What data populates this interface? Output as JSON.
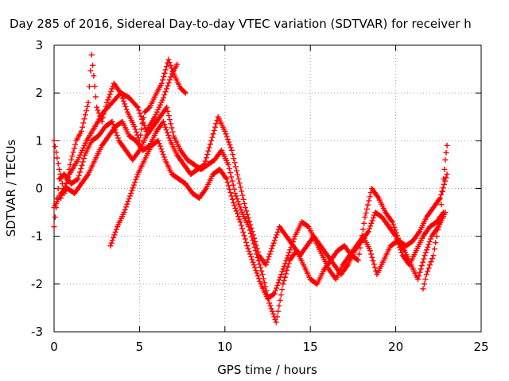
{
  "chart_data": {
    "type": "scatter",
    "title": "Day 285 of 2016, Sidereal Day-to-day VTEC variation (SDTVAR) for receiver h",
    "xlabel": "GPS time / hours",
    "ylabel": "SDTVAR / TECUs",
    "xlim": [
      0,
      25
    ],
    "ylim": [
      -3,
      3
    ],
    "xticks": [
      0,
      5,
      10,
      15,
      20,
      25
    ],
    "yticks": [
      -3,
      -2,
      -1,
      0,
      1,
      2,
      3
    ],
    "grid": true,
    "marker": "+",
    "color": "#ff0000",
    "series": [
      {
        "values": [
          [
            0.0,
            1.0
          ],
          [
            0.3,
            0.4
          ],
          [
            0.6,
            -0.1
          ],
          [
            1.0,
            0.6
          ],
          [
            1.3,
            1.0
          ],
          [
            1.6,
            1.2
          ],
          [
            2.0,
            1.8
          ],
          [
            2.2,
            2.8
          ],
          [
            2.5,
            1.7
          ],
          [
            2.8,
            1.4
          ],
          [
            3.1,
            1.8
          ],
          [
            3.5,
            2.2
          ],
          [
            3.9,
            2.0
          ],
          [
            4.3,
            1.6
          ],
          [
            4.7,
            1.3
          ],
          [
            5.0,
            1.0
          ],
          [
            5.3,
            1.6
          ],
          [
            5.6,
            1.7
          ],
          [
            6.0,
            2.0
          ],
          [
            6.3,
            2.2
          ],
          [
            6.7,
            2.7
          ],
          [
            7.0,
            2.4
          ],
          [
            7.4,
            2.1
          ],
          [
            7.7,
            2.0
          ]
        ]
      },
      {
        "values": [
          [
            0.0,
            -0.8
          ],
          [
            0.3,
            0.2
          ],
          [
            0.6,
            0.3
          ],
          [
            1.0,
            0.1
          ],
          [
            1.4,
            0.2
          ],
          [
            1.8,
            0.7
          ],
          [
            2.2,
            1.0
          ],
          [
            2.6,
            1.1
          ],
          [
            3.0,
            1.3
          ],
          [
            3.4,
            1.4
          ],
          [
            3.8,
            1.0
          ],
          [
            4.2,
            0.8
          ],
          [
            4.6,
            0.6
          ],
          [
            5.0,
            0.8
          ],
          [
            5.4,
            1.1
          ],
          [
            5.8,
            1.3
          ],
          [
            6.2,
            1.5
          ],
          [
            6.6,
            1.7
          ],
          [
            7.0,
            1.1
          ],
          [
            7.4,
            0.8
          ],
          [
            7.8,
            0.6
          ],
          [
            8.2,
            0.5
          ],
          [
            8.6,
            0.4
          ],
          [
            9.0,
            0.5
          ],
          [
            9.4,
            0.6
          ],
          [
            9.8,
            0.8
          ],
          [
            10.2,
            0.5
          ],
          [
            10.6,
            -0.1
          ],
          [
            11.0,
            -0.5
          ],
          [
            11.4,
            -0.8
          ],
          [
            11.8,
            -1.3
          ],
          [
            12.2,
            -1.8
          ],
          [
            12.6,
            -2.4
          ],
          [
            13.0,
            -2.8
          ],
          [
            13.4,
            -2.0
          ],
          [
            13.8,
            -1.5
          ],
          [
            14.2,
            -1.3
          ],
          [
            14.6,
            -1.6
          ],
          [
            15.0,
            -1.9
          ],
          [
            15.4,
            -2.0
          ],
          [
            15.8,
            -1.7
          ],
          [
            16.2,
            -1.5
          ],
          [
            16.6,
            -1.3
          ],
          [
            17.0,
            -1.2
          ],
          [
            17.4,
            -1.4
          ],
          [
            17.8,
            -1.5
          ],
          [
            18.2,
            -0.6
          ],
          [
            18.6,
            0.0
          ],
          [
            19.0,
            -0.2
          ],
          [
            19.4,
            -0.5
          ],
          [
            19.8,
            -0.7
          ],
          [
            20.2,
            -1.1
          ],
          [
            20.6,
            -1.2
          ],
          [
            21.0,
            -1.1
          ],
          [
            21.4,
            -0.9
          ],
          [
            21.8,
            -0.6
          ],
          [
            22.2,
            -0.4
          ],
          [
            22.6,
            -0.2
          ],
          [
            23.0,
            0.3
          ]
        ]
      },
      {
        "values": [
          [
            0.0,
            -0.4
          ],
          [
            0.4,
            -0.1
          ],
          [
            0.8,
            0.0
          ],
          [
            1.2,
            -0.1
          ],
          [
            1.6,
            0.1
          ],
          [
            2.0,
            0.3
          ],
          [
            2.4,
            0.6
          ],
          [
            2.8,
            0.9
          ],
          [
            3.2,
            1.1
          ],
          [
            3.6,
            1.3
          ],
          [
            4.0,
            1.4
          ],
          [
            4.4,
            1.1
          ],
          [
            4.8,
            1.0
          ],
          [
            5.2,
            0.8
          ],
          [
            5.6,
            0.9
          ],
          [
            6.0,
            1.2
          ],
          [
            6.4,
            1.4
          ],
          [
            6.8,
            1.0
          ],
          [
            7.2,
            0.7
          ],
          [
            7.6,
            0.5
          ],
          [
            8.0,
            0.3
          ],
          [
            8.4,
            0.4
          ],
          [
            8.8,
            0.5
          ],
          [
            9.2,
            1.0
          ],
          [
            9.6,
            1.5
          ],
          [
            10.0,
            1.2
          ],
          [
            10.4,
            0.8
          ],
          [
            10.8,
            0.2
          ],
          [
            11.2,
            -0.4
          ],
          [
            11.6,
            -0.9
          ],
          [
            12.0,
            -1.4
          ],
          [
            12.4,
            -1.6
          ],
          [
            12.8,
            -1.2
          ],
          [
            13.2,
            -0.8
          ],
          [
            13.6,
            -1.0
          ],
          [
            14.0,
            -1.2
          ],
          [
            14.4,
            -1.4
          ],
          [
            14.8,
            -1.2
          ],
          [
            15.2,
            -1.0
          ],
          [
            15.6,
            -1.2
          ],
          [
            16.0,
            -1.4
          ],
          [
            16.4,
            -1.6
          ],
          [
            16.8,
            -1.8
          ],
          [
            17.2,
            -1.6
          ],
          [
            17.6,
            -1.3
          ],
          [
            18.0,
            -1.1
          ],
          [
            18.4,
            -0.9
          ],
          [
            18.8,
            -0.5
          ],
          [
            19.2,
            -0.6
          ],
          [
            19.6,
            -0.8
          ],
          [
            20.0,
            -1.0
          ],
          [
            20.4,
            -1.4
          ],
          [
            20.8,
            -1.6
          ],
          [
            21.2,
            -1.3
          ],
          [
            21.6,
            -1.0
          ],
          [
            22.0,
            -0.8
          ],
          [
            22.4,
            -0.7
          ],
          [
            22.8,
            -0.5
          ]
        ]
      },
      {
        "values": [
          [
            3.3,
            -1.2
          ],
          [
            3.7,
            -0.8
          ],
          [
            4.1,
            -0.5
          ],
          [
            4.5,
            -0.1
          ],
          [
            4.9,
            0.3
          ],
          [
            5.3,
            0.6
          ],
          [
            5.7,
            0.9
          ],
          [
            6.1,
            1.0
          ],
          [
            6.5,
            0.6
          ],
          [
            6.9,
            0.3
          ],
          [
            7.3,
            0.2
          ],
          [
            7.7,
            0.1
          ],
          [
            8.1,
            -0.1
          ],
          [
            8.5,
            -0.2
          ],
          [
            8.9,
            0.0
          ],
          [
            9.3,
            0.3
          ],
          [
            9.7,
            0.4
          ],
          [
            10.1,
            0.2
          ],
          [
            10.5,
            -0.3
          ],
          [
            10.9,
            -0.7
          ],
          [
            11.3,
            -1.2
          ],
          [
            11.7,
            -1.6
          ],
          [
            12.1,
            -2.0
          ],
          [
            12.5,
            -2.3
          ],
          [
            12.9,
            -2.2
          ],
          [
            13.3,
            -1.8
          ],
          [
            13.7,
            -1.4
          ],
          [
            14.1,
            -1.0
          ],
          [
            14.5,
            -0.7
          ],
          [
            14.9,
            -0.8
          ],
          [
            15.3,
            -1.1
          ],
          [
            15.7,
            -1.4
          ],
          [
            16.1,
            -1.7
          ],
          [
            16.5,
            -1.9
          ],
          [
            16.9,
            -1.6
          ],
          [
            17.3,
            -1.4
          ],
          [
            17.7,
            -1.2
          ],
          [
            18.1,
            -1.0
          ],
          [
            18.5,
            -1.3
          ],
          [
            18.9,
            -1.8
          ],
          [
            19.3,
            -1.5
          ],
          [
            19.7,
            -1.2
          ],
          [
            20.1,
            -1.1
          ],
          [
            20.5,
            -1.3
          ],
          [
            20.9,
            -1.6
          ],
          [
            21.3,
            -1.9
          ],
          [
            21.7,
            -1.4
          ],
          [
            22.1,
            -1.0
          ],
          [
            22.5,
            -0.8
          ],
          [
            22.9,
            -0.5
          ]
        ]
      },
      {
        "values": [
          [
            0.4,
            -0.2
          ],
          [
            0.9,
            0.3
          ],
          [
            1.4,
            0.6
          ],
          [
            1.9,
            1.0
          ],
          [
            2.4,
            1.3
          ],
          [
            2.9,
            1.6
          ],
          [
            3.4,
            1.8
          ],
          [
            3.9,
            2.0
          ],
          [
            4.4,
            1.9
          ],
          [
            4.9,
            1.7
          ],
          [
            5.4,
            1.2
          ],
          [
            5.9,
            1.5
          ],
          [
            6.4,
            1.9
          ],
          [
            6.9,
            2.4
          ],
          [
            7.2,
            2.6
          ]
        ]
      },
      {
        "values": [
          [
            21.6,
            -2.1
          ],
          [
            21.8,
            -1.8
          ],
          [
            22.0,
            -1.6
          ],
          [
            22.2,
            -1.4
          ],
          [
            22.4,
            -1.0
          ],
          [
            22.6,
            -0.6
          ],
          [
            22.8,
            0.2
          ],
          [
            22.9,
            0.6
          ],
          [
            23.0,
            0.9
          ]
        ]
      }
    ]
  }
}
